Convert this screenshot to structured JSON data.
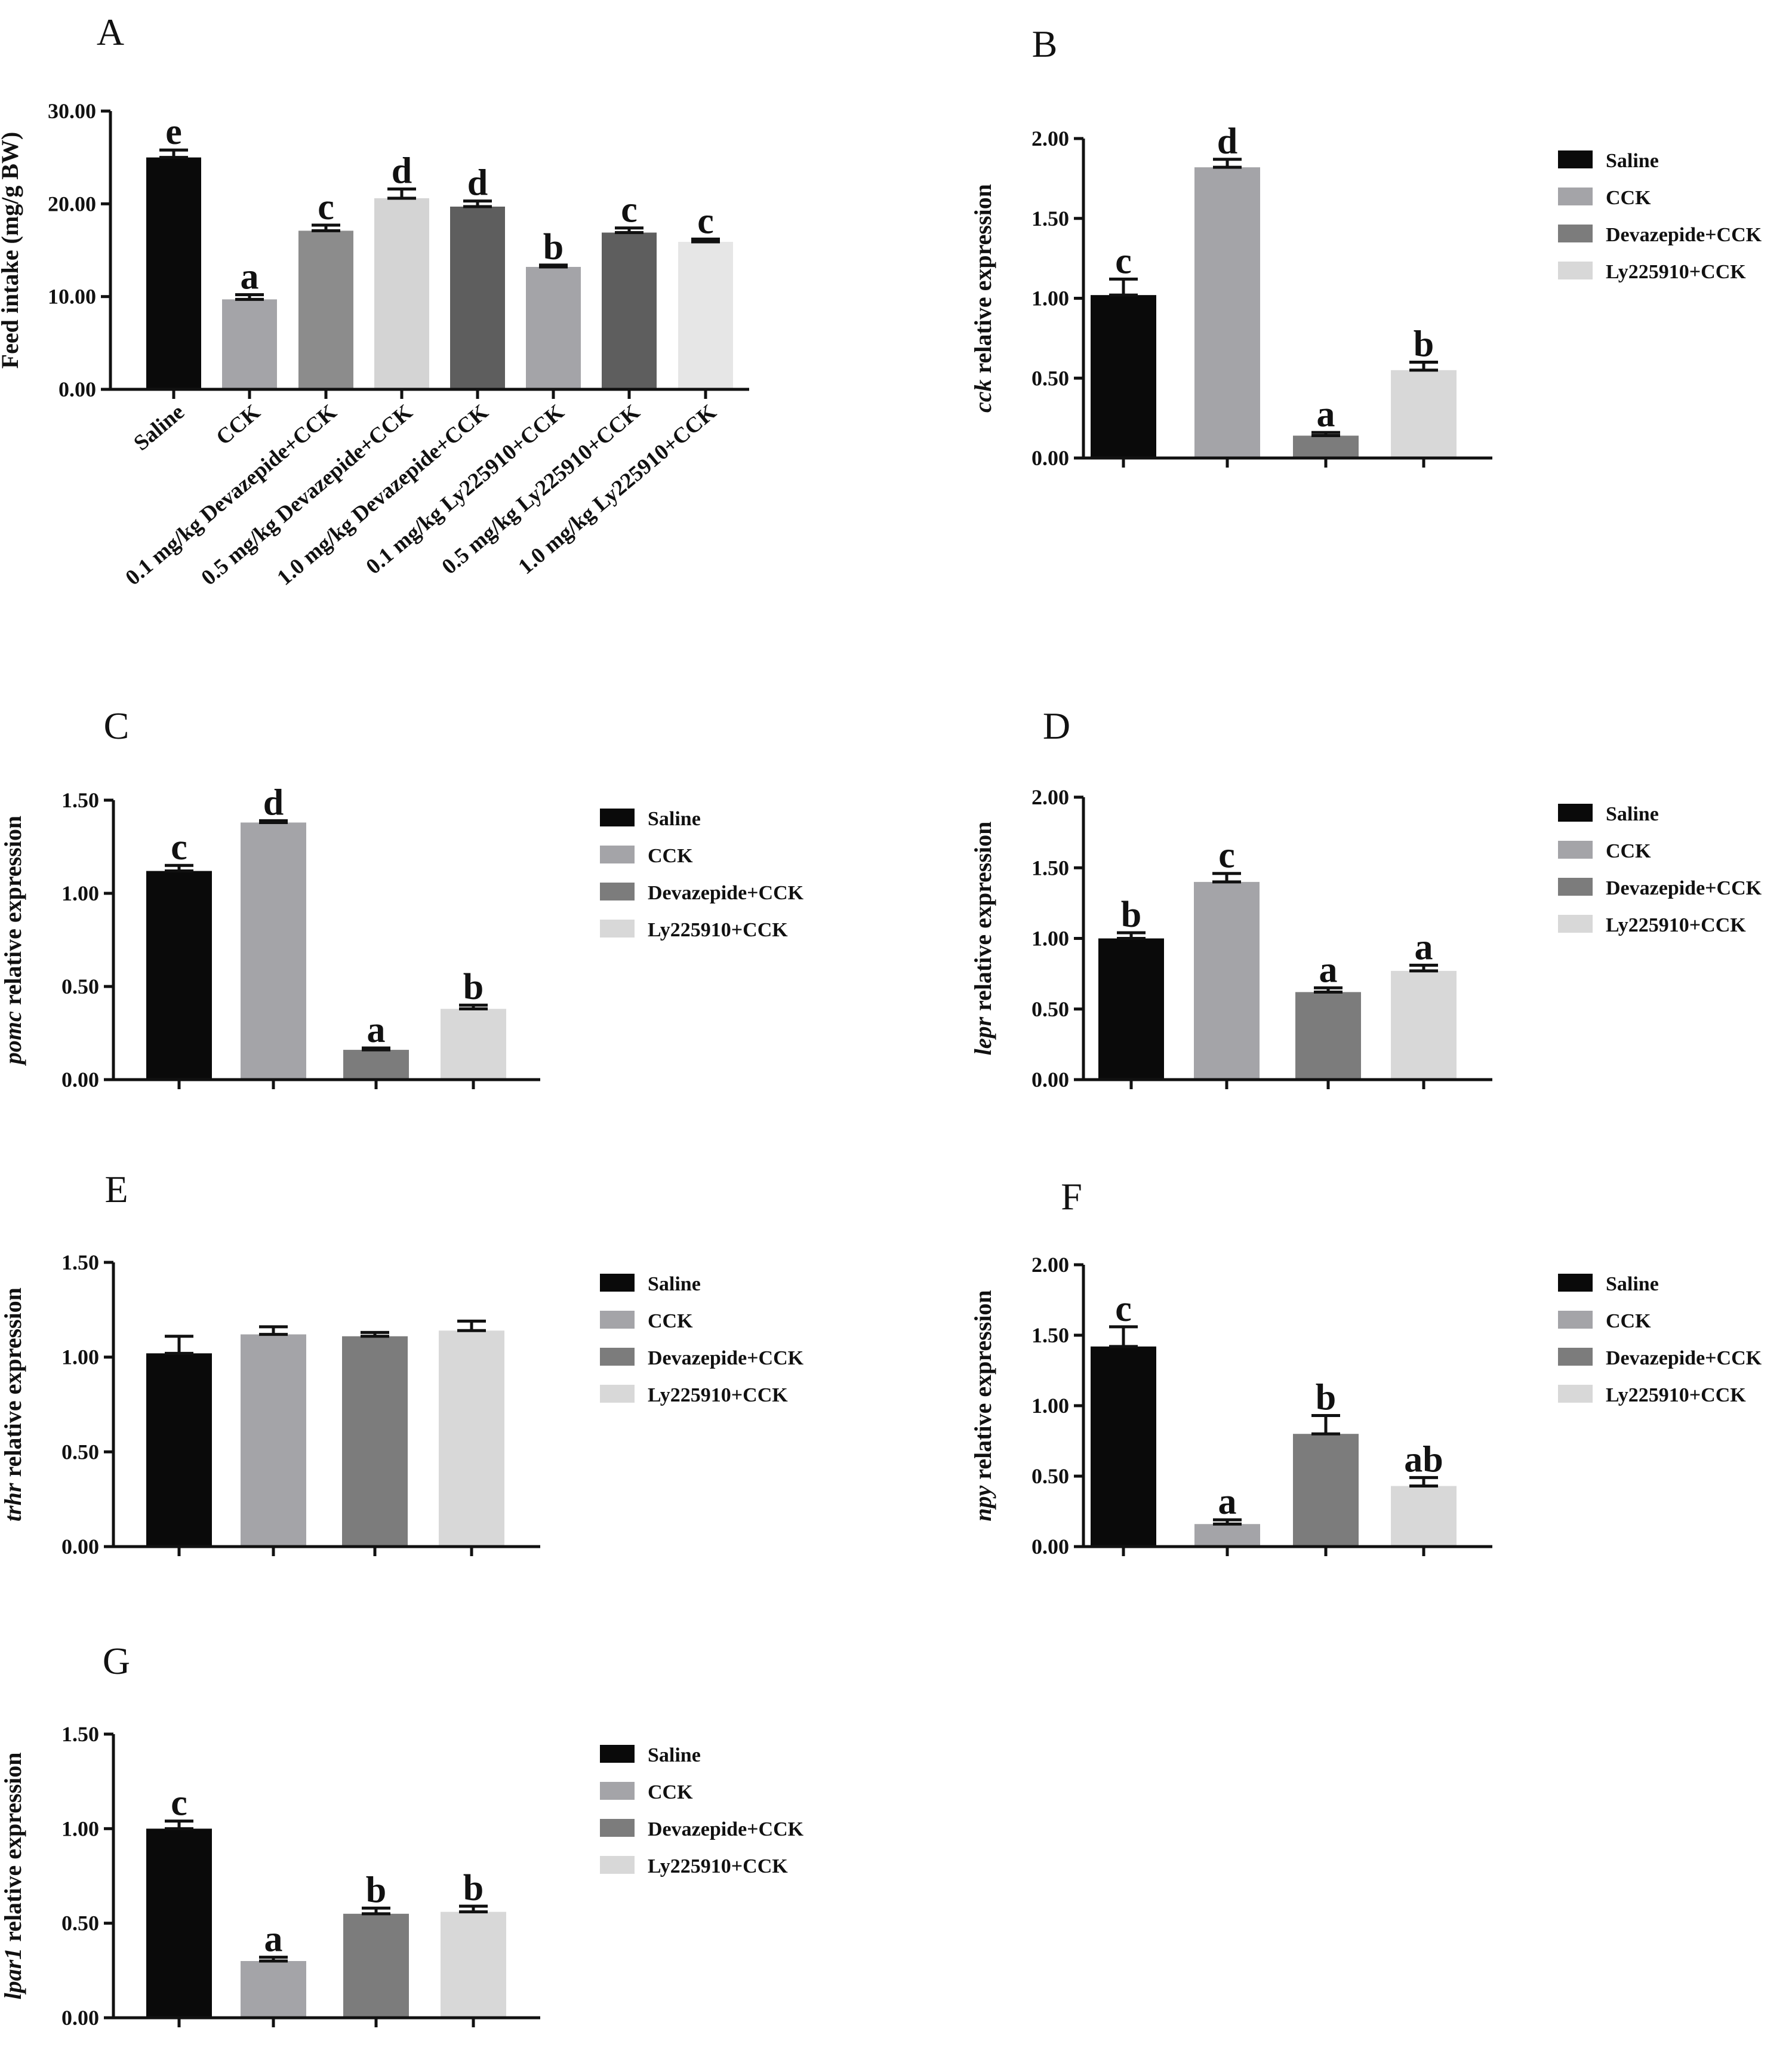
{
  "figure": {
    "title": ""
  },
  "chart_data": [
    {
      "panel": "A",
      "type": "bar",
      "ylabel": "Feed intake (mg/g BW)",
      "ylim": [
        0,
        30
      ],
      "yticks": [
        "0.00",
        "10.00",
        "20.00",
        "30.00"
      ],
      "categories": [
        "Saline",
        "CCK",
        "0.1 mg/kg Devazepide+CCK",
        "0.5 mg/kg Devazepide+CCK",
        "1.0 mg/kg Devazepide+CCK",
        "0.1 mg/kg Ly225910+CCK",
        "0.5 mg/kg Ly225910+CCK",
        "1.0 mg/kg Ly225910+CCK"
      ],
      "values": [
        25.0,
        9.7,
        17.1,
        20.6,
        19.7,
        13.2,
        16.9,
        15.9
      ],
      "errors": [
        0.8,
        0.5,
        0.6,
        1.0,
        0.6,
        0.2,
        0.5,
        0.3
      ],
      "labels": [
        "e",
        "a",
        "c",
        "d",
        "d",
        "b",
        "c",
        "c"
      ],
      "colors": [
        "#0a0a0a",
        "#a4a4a8",
        "#8c8c8c",
        "#d4d4d4",
        "#5e5e5e",
        "#a4a4a8",
        "#5e5e5e",
        "#e6e6e6"
      ]
    },
    {
      "panel": "B",
      "type": "bar",
      "ylabel_italic": "cck",
      "ylabel": " relative expression",
      "ylim": [
        0,
        2
      ],
      "yticks": [
        "0.00",
        "0.50",
        "1.00",
        "1.50",
        "2.00"
      ],
      "categories": [
        "Saline",
        "CCK",
        "Devazepide+CCK",
        "Ly225910+CCK"
      ],
      "values": [
        1.02,
        1.82,
        0.14,
        0.55
      ],
      "errors": [
        0.1,
        0.05,
        0.02,
        0.05
      ],
      "labels": [
        "c",
        "d",
        "a",
        "b"
      ],
      "legend": [
        "Saline",
        "CCK",
        "Devazepide+CCK",
        "Ly225910+CCK"
      ]
    },
    {
      "panel": "C",
      "type": "bar",
      "ylabel_italic": "pomc",
      "ylabel": " relative expression",
      "ylim": [
        0,
        1.5
      ],
      "yticks": [
        "0.00",
        "0.50",
        "1.00",
        "1.50"
      ],
      "categories": [
        "Saline",
        "CCK",
        "Devazepide+CCK",
        "Ly225910+CCK"
      ],
      "values": [
        1.12,
        1.38,
        0.16,
        0.38
      ],
      "errors": [
        0.03,
        0.01,
        0.01,
        0.02
      ],
      "labels": [
        "c",
        "d",
        "a",
        "b"
      ],
      "legend": [
        "Saline",
        "CCK",
        "Devazepide+CCK",
        "Ly225910+CCK"
      ]
    },
    {
      "panel": "D",
      "type": "bar",
      "ylabel_italic": "lepr",
      "ylabel": " relative expression",
      "ylim": [
        0,
        2
      ],
      "yticks": [
        "0.00",
        "0.50",
        "1.00",
        "1.50",
        "2.00"
      ],
      "categories": [
        "Saline",
        "CCK",
        "Devazepide+CCK",
        "Ly225910+CCK"
      ],
      "values": [
        1.0,
        1.4,
        0.62,
        0.77
      ],
      "errors": [
        0.04,
        0.06,
        0.03,
        0.04
      ],
      "labels": [
        "b",
        "c",
        "a",
        "a"
      ],
      "legend": [
        "Saline",
        "CCK",
        "Devazepide+CCK",
        "Ly225910+CCK"
      ]
    },
    {
      "panel": "E",
      "type": "bar",
      "ylabel_italic": "trhr",
      "ylabel": " relative expression",
      "ylim": [
        0,
        1.5
      ],
      "yticks": [
        "0.00",
        "0.50",
        "1.00",
        "1.50"
      ],
      "categories": [
        "Saline",
        "CCK",
        "Devazepide+CCK",
        "Ly225910+CCK"
      ],
      "values": [
        1.02,
        1.12,
        1.11,
        1.14
      ],
      "errors": [
        0.09,
        0.04,
        0.02,
        0.05
      ],
      "labels": [
        "",
        "",
        "",
        ""
      ],
      "legend": [
        "Saline",
        "CCK",
        "Devazepide+CCK",
        "Ly225910+CCK"
      ]
    },
    {
      "panel": "F",
      "type": "bar",
      "ylabel_italic": "npy",
      "ylabel": " relative expression",
      "ylim": [
        0,
        2
      ],
      "yticks": [
        "0.00",
        "0.50",
        "1.00",
        "1.50",
        "2.00"
      ],
      "categories": [
        "Saline",
        "CCK",
        "Devazepide+CCK",
        "Ly225910+CCK"
      ],
      "values": [
        1.42,
        0.16,
        0.8,
        0.43
      ],
      "errors": [
        0.14,
        0.03,
        0.13,
        0.06
      ],
      "labels": [
        "c",
        "a",
        "b",
        "ab"
      ],
      "legend": [
        "Saline",
        "CCK",
        "Devazepide+CCK",
        "Ly225910+CCK"
      ]
    },
    {
      "panel": "G",
      "type": "bar",
      "ylabel_italic": "lpar1",
      "ylabel": " relative expression",
      "ylim": [
        0,
        1.5
      ],
      "yticks": [
        "0.00",
        "0.50",
        "1.00",
        "1.50"
      ],
      "categories": [
        "Saline",
        "CCK",
        "Devazepide+CCK",
        "Ly225910+CCK"
      ],
      "values": [
        1.0,
        0.3,
        0.55,
        0.56
      ],
      "errors": [
        0.04,
        0.02,
        0.03,
        0.03
      ],
      "labels": [
        "c",
        "a",
        "b",
        "b"
      ],
      "legend": [
        "Saline",
        "CCK",
        "Devazepide+CCK",
        "Ly225910+CCK"
      ]
    }
  ],
  "colors": {
    "saline": "#0a0a0a",
    "cck": "#a4a4a8",
    "devazepide": "#7c7c7c",
    "ly225910": "#d8d8d8",
    "axis": "#111111"
  }
}
